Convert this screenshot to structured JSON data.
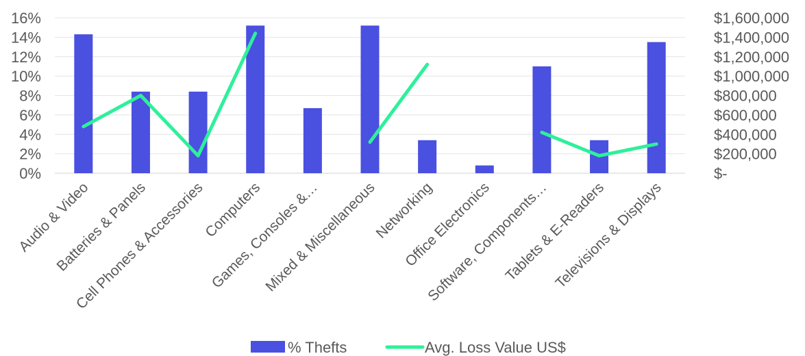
{
  "chart_data": {
    "type": "bar",
    "categories": [
      "Audio & Video",
      "Batteries & Panels",
      "Cell Phones & Accessories",
      "Computers",
      "Games, Consoles &…",
      "Mixed & Miscellaneous",
      "Networking",
      "Office Electronics",
      "Software, Components…",
      "Tablets & E-Readers",
      "Televisions & Displays"
    ],
    "series": [
      {
        "name": "% Thefts",
        "type": "bar",
        "axis": "left",
        "color": "#4a50e0",
        "values": [
          14.3,
          8.4,
          8.4,
          15.2,
          6.7,
          15.2,
          3.4,
          0.8,
          11.0,
          3.4,
          13.5
        ]
      },
      {
        "name": "Avg. Loss Value US$",
        "type": "line",
        "axis": "right",
        "color": "#2ef09a",
        "values": [
          480000,
          800000,
          180000,
          1440000,
          null,
          320000,
          1120000,
          null,
          420000,
          180000,
          300000
        ]
      }
    ],
    "y_left": {
      "ylim": [
        0,
        16
      ],
      "ticks": [
        "0%",
        "2%",
        "4%",
        "6%",
        "8%",
        "10%",
        "12%",
        "14%",
        "16%"
      ]
    },
    "y_right": {
      "ylim": [
        0,
        1600000
      ],
      "ticks": [
        "$-",
        "$200,000",
        "$400,000",
        "$600,000",
        "$800,000",
        "$1,000,000",
        "$1,200,000",
        "$1,400,000",
        "$1,600,000"
      ]
    },
    "gridlines": true,
    "legend": {
      "position": "bottom",
      "items": [
        "% Thefts",
        "Avg. Loss Value US$"
      ]
    }
  }
}
